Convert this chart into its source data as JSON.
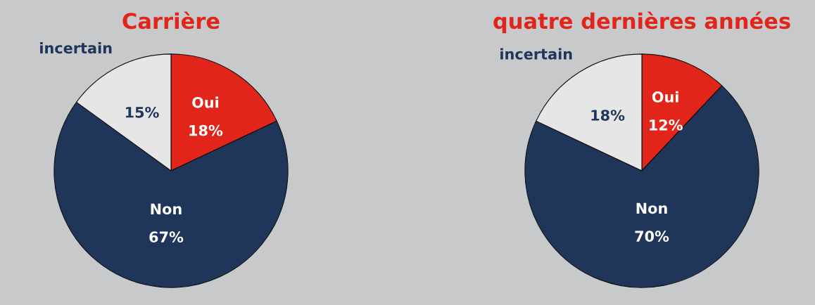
{
  "chart_data": [
    {
      "type": "pie",
      "title": "Carrière",
      "categories": [
        "Oui",
        "Non",
        "incertain"
      ],
      "values": [
        18,
        67,
        15
      ],
      "colors": [
        "#e1251b",
        "#1f3559",
        "#e6e6e6"
      ],
      "value_labels": [
        "18%",
        "67%",
        "15%"
      ],
      "legend": false
    },
    {
      "type": "pie",
      "title": "quatre dernières années",
      "categories": [
        "Oui",
        "Non",
        "incertain"
      ],
      "values": [
        12,
        70,
        18
      ],
      "colors": [
        "#e1251b",
        "#1f3559",
        "#e6e6e6"
      ],
      "value_labels": [
        "12%",
        "70%",
        "18%"
      ],
      "legend": false
    }
  ]
}
